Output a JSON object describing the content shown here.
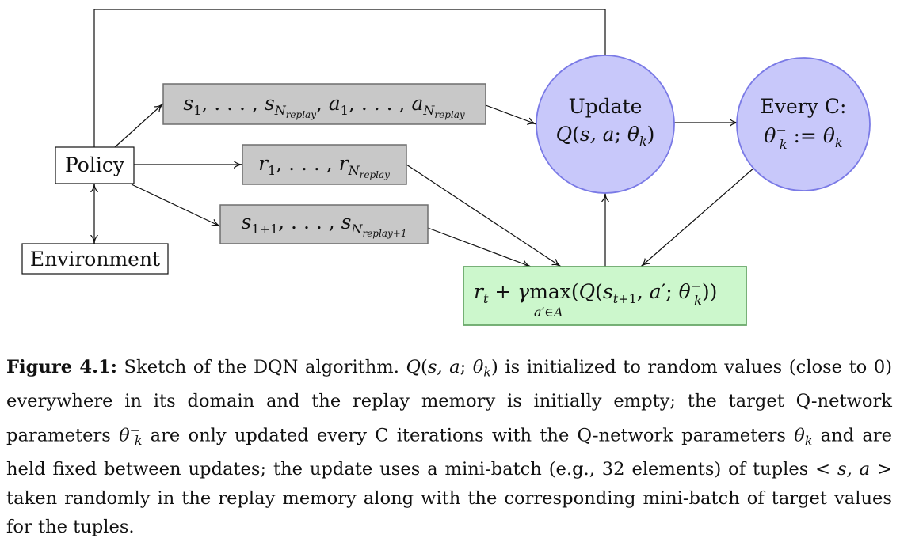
{
  "nodes": {
    "policy": "Policy",
    "environment": "Environment",
    "update_line1": "Update",
    "update_line2": "Q(s, a; θk)",
    "everyc_line1": "Every C:",
    "everyc_line2": "θk− := θk",
    "states_actions": "s1, . . . , sNreplay, a1, . . . , aNreplay",
    "rewards": "r1, . . . , rNreplay",
    "next_states": "s1+1, . . . , sNreplay+1",
    "target": "rt + γ max a′∈A (Q(st+1, a′; θk−))"
  },
  "caption": {
    "label": "Figure 4.1:",
    "text": "Sketch of the DQN algorithm. Q(s, a; θk) is initialized to random values (close to 0) everywhere in its domain and the replay memory is initially empty; the target Q-network parameters θk− are only updated every C iterations with the Q-network parameters θk and are held fixed between updates; the update uses a mini-batch (e.g., 32 elements) of tuples < s, a > taken randomly in the replay memory along with the corresponding mini-batch of target values for the tuples."
  },
  "colors": {
    "circle_fill": "#c8c8fa",
    "circle_stroke": "#7a7ae6",
    "gray_box_fill": "#c8c8c8",
    "gray_box_stroke": "#6e6e6e",
    "green_box_fill": "#ccf7cc",
    "green_box_stroke": "#6aa86a"
  }
}
